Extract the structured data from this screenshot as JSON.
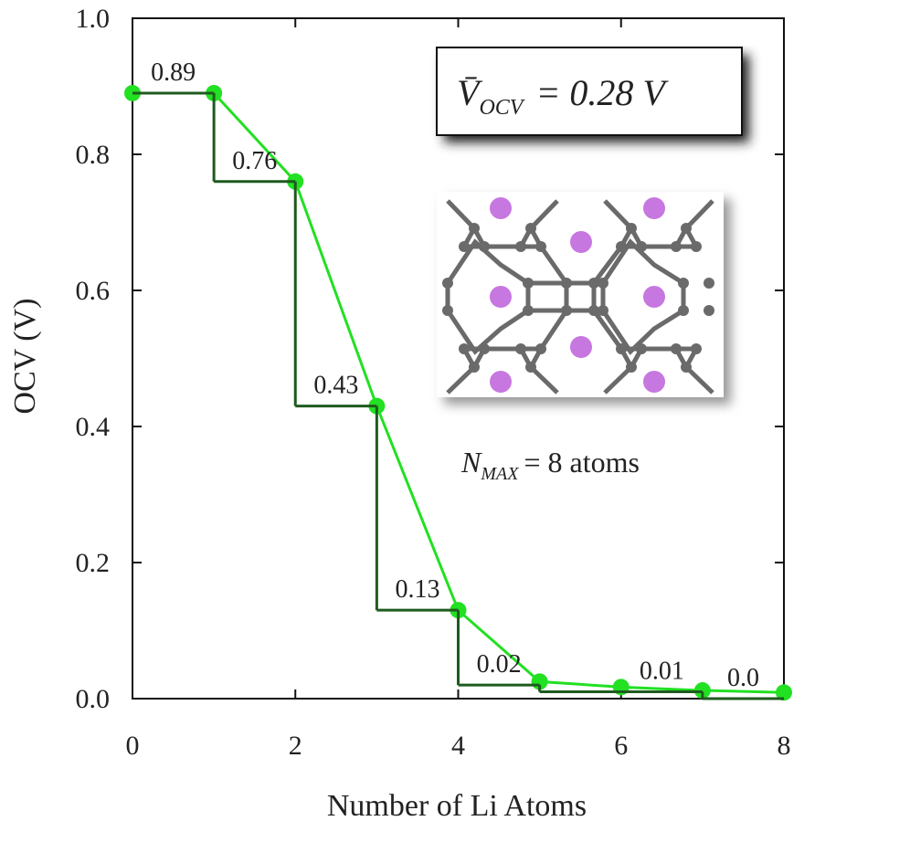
{
  "chart_data": {
    "type": "line",
    "xlabel": "Number of Li Atoms",
    "ylabel": "OCV (V)",
    "xlim": [
      0,
      8
    ],
    "xticks": [
      0,
      2,
      4,
      6,
      8
    ],
    "ylim": [
      0,
      1
    ],
    "yticks": [
      {
        "value": 0,
        "label": "0.0"
      },
      0.2,
      0.4,
      0.6,
      0.8,
      {
        "value": 1,
        "label": "1.0"
      }
    ],
    "series": [
      {
        "color": "#22e022",
        "x": [
          0,
          1,
          2,
          3,
          4,
          5,
          6,
          7,
          8
        ],
        "values": [
          0.89,
          0.89,
          0.76,
          0.43,
          0.13,
          0.025,
          0.017,
          0.012,
          0.009
        ]
      },
      {
        "color": "#1f5a1f",
        "style": "step",
        "x": [
          0,
          1,
          2,
          3,
          4,
          5,
          6,
          7
        ],
        "values": [
          0.89,
          0.76,
          0.43,
          0.13,
          0.02,
          0.01,
          0.01,
          0.0
        ],
        "value_labels": [
          "0.89",
          "0.76",
          "0.43",
          "0.13",
          "0.02",
          null,
          "0.01",
          "0.0"
        ]
      }
    ],
    "annotations": {
      "mean_ocv": {
        "symbol": "V̄",
        "subscript": "OCV",
        "text": "= 0.28 V"
      },
      "n_max": {
        "symbol": "N",
        "subscript": "MAX",
        "text": "= 8 atoms"
      }
    }
  }
}
